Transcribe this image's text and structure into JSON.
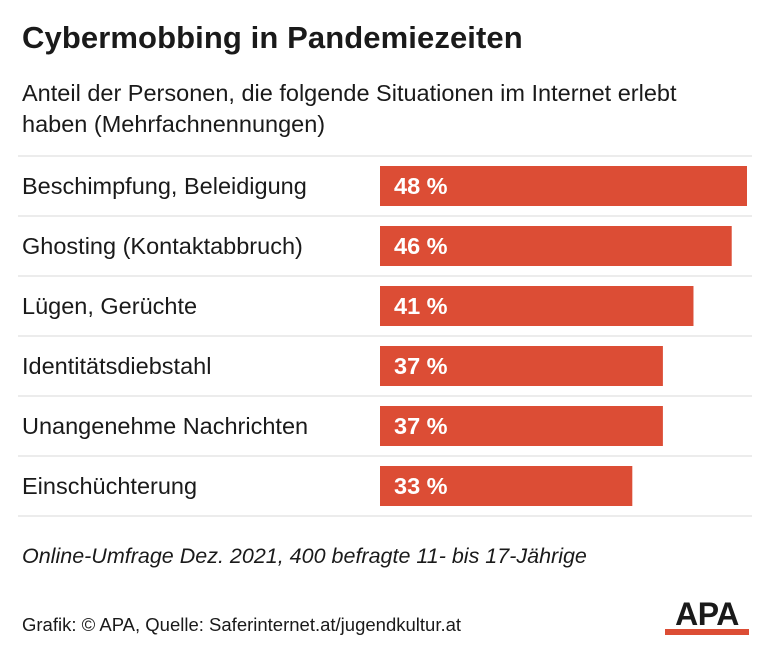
{
  "colors": {
    "bar": "#dc4d35",
    "text": "#1a1a1a",
    "value_text": "#ffffff",
    "rule": "#d8d8d8",
    "logo_accent": "#dc4d35"
  },
  "header": {
    "title": "Cybermobbing in Pandemiezeiten",
    "subtitle": "Anteil der Personen, die folgende Situationen im Internet erlebt haben (Mehrfachnennungen)"
  },
  "chart_data": {
    "type": "bar",
    "orientation": "horizontal",
    "categories": [
      "Beschimpfung, Beleidigung",
      "Ghosting (Kontaktabbruch)",
      "Lügen, Gerüchte",
      "Identitätsdiebstahl",
      "Unangenehme Nachrichten",
      "Einschüchterung"
    ],
    "values": [
      48,
      46,
      41,
      37,
      37,
      33
    ],
    "value_labels": [
      "48 %",
      "46 %",
      "41 %",
      "37 %",
      "37 %",
      "33 %"
    ],
    "unit": "%",
    "xlim": [
      0,
      48
    ],
    "grid": false,
    "legend": "none"
  },
  "footer": {
    "note": "Online-Umfrage Dez. 2021, 400 befragte 11- bis 17-Jährige",
    "credits": "Grafik: © APA, Quelle: Saferinternet.at/jugendkultur.at",
    "logo_text": "APA"
  }
}
